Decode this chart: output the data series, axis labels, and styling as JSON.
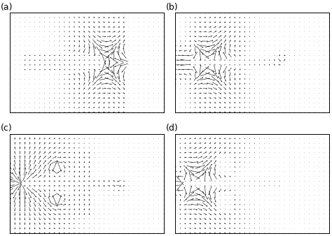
{
  "figsize": [
    4.74,
    3.38
  ],
  "dpi": 100,
  "background": "#ffffff",
  "panels": [
    "(a)",
    "(b)",
    "(c)",
    "(d)"
  ],
  "nx": 32,
  "ny": 22,
  "arrow_color": "#000000"
}
